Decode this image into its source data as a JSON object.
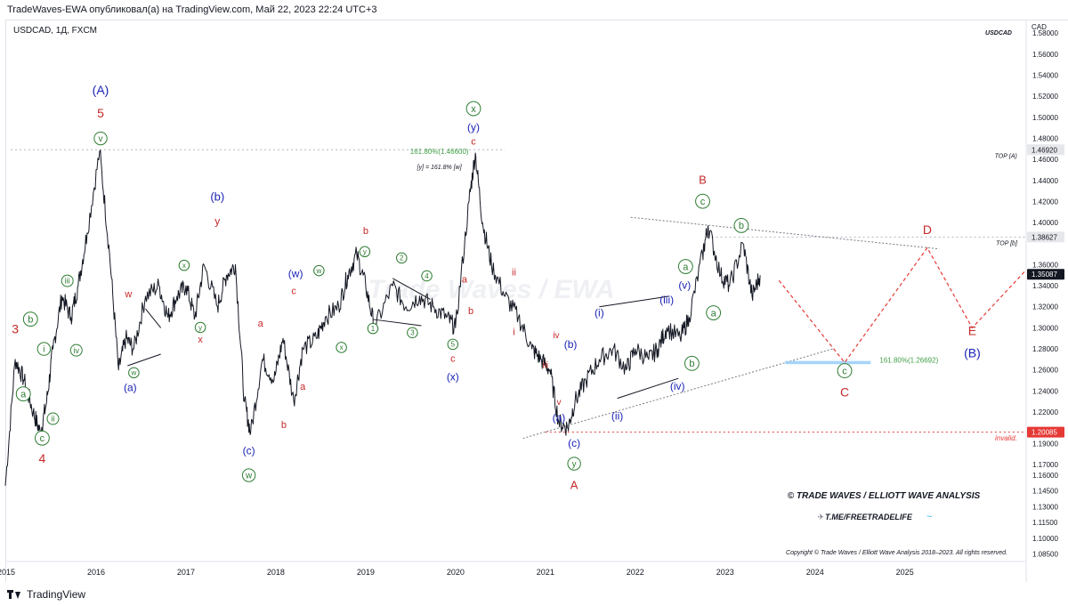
{
  "header": {
    "publisher_line": "TradeWaves-EWA опубликовал(а) на TradingView.com, Май 22, 2023 22:24 UTC+3"
  },
  "chart_data": {
    "type": "line",
    "title": "USDCAD, 1Д, FXCM",
    "symbol_label": "USDCAD",
    "currency": "CAD",
    "xlim": [
      2015.0,
      2026.35
    ],
    "ylim": [
      1.078,
      1.592
    ],
    "x_ticks": [
      {
        "x": 2015.0,
        "label": "2015"
      },
      {
        "x": 2016.0,
        "label": "2016"
      },
      {
        "x": 2017.0,
        "label": "2017"
      },
      {
        "x": 2018.0,
        "label": "2018"
      },
      {
        "x": 2019.0,
        "label": "2019"
      },
      {
        "x": 2020.0,
        "label": "2020"
      },
      {
        "x": 2021.0,
        "label": "2021"
      },
      {
        "x": 2022.0,
        "label": "2022"
      },
      {
        "x": 2023.0,
        "label": "2023"
      },
      {
        "x": 2024.0,
        "label": "2024"
      },
      {
        "x": 2025.0,
        "label": "2025"
      }
    ],
    "y_ticks": [
      {
        "y": 1.58,
        "label": "1.58000"
      },
      {
        "y": 1.56,
        "label": "1.56000"
      },
      {
        "y": 1.54,
        "label": "1.54000"
      },
      {
        "y": 1.52,
        "label": "1.52000"
      },
      {
        "y": 1.5,
        "label": "1.50000"
      },
      {
        "y": 1.48,
        "label": "1.48000"
      },
      {
        "y": 1.46,
        "label": "1.46000"
      },
      {
        "y": 1.44,
        "label": "1.44000"
      },
      {
        "y": 1.42,
        "label": "1.42000"
      },
      {
        "y": 1.4,
        "label": "1.40000"
      },
      {
        "y": 1.36,
        "label": "1.36000"
      },
      {
        "y": 1.34,
        "label": "1.34000"
      },
      {
        "y": 1.32,
        "label": "1.32000"
      },
      {
        "y": 1.3,
        "label": "1.30000"
      },
      {
        "y": 1.28,
        "label": "1.28000"
      },
      {
        "y": 1.26,
        "label": "1.26000"
      },
      {
        "y": 1.24,
        "label": "1.24000"
      },
      {
        "y": 1.22,
        "label": "1.22000"
      },
      {
        "y": 1.19,
        "label": "1.19000"
      },
      {
        "y": 1.17,
        "label": "1.17000"
      },
      {
        "y": 1.16,
        "label": "1.16000"
      },
      {
        "y": 1.145,
        "label": "1.14500"
      },
      {
        "y": 1.13,
        "label": "1.13000"
      },
      {
        "y": 1.115,
        "label": "1.11500"
      },
      {
        "y": 1.1,
        "label": "1.10000"
      },
      {
        "y": 1.085,
        "label": "1.08500"
      }
    ],
    "price_badges": [
      {
        "y": 1.4692,
        "label": "1.46920",
        "color": "#e6e7ea",
        "text_color": "#131722"
      },
      {
        "y": 1.38627,
        "label": "1.38627",
        "color": "#e6e7ea",
        "text_color": "#131722"
      },
      {
        "y": 1.35087,
        "label": "1.35087",
        "color": "#131722",
        "text_color": "#ffffff"
      },
      {
        "y": 1.20085,
        "label": "1.20085",
        "color": "#e53935",
        "text_color": "#ffffff"
      }
    ],
    "series": [
      {
        "color": "#131722",
        "x": [
          2014.99,
          2015.1,
          2015.2,
          2015.3,
          2015.38,
          2015.45,
          2015.52,
          2015.62,
          2015.72,
          2015.8,
          2015.9,
          2016.04,
          2016.15,
          2016.25,
          2016.33,
          2016.42,
          2016.55,
          2016.7,
          2016.8,
          2016.9,
          2017.0,
          2017.1,
          2017.2,
          2017.35,
          2017.45,
          2017.55,
          2017.65,
          2017.72,
          2017.85,
          2017.98,
          2018.08,
          2018.2,
          2018.3,
          2018.45,
          2018.55,
          2018.7,
          2018.8,
          2018.9,
          2019.0,
          2019.1,
          2019.3,
          2019.45,
          2019.6,
          2019.75,
          2019.9,
          2020.0,
          2020.15,
          2020.22,
          2020.3,
          2020.4,
          2020.55,
          2020.7,
          2020.85,
          2020.95,
          2021.05,
          2021.15,
          2021.25,
          2021.33,
          2021.45,
          2021.6,
          2021.75,
          2021.9,
          2022.0,
          2022.15,
          2022.25,
          2022.35,
          2022.5,
          2022.6,
          2022.75,
          2022.81,
          2022.95,
          2023.05,
          2023.2,
          2023.3,
          2023.39
        ],
        "y": [
          1.15,
          1.27,
          1.25,
          1.22,
          1.2,
          1.23,
          1.28,
          1.33,
          1.31,
          1.34,
          1.39,
          1.468,
          1.37,
          1.26,
          1.29,
          1.28,
          1.33,
          1.34,
          1.31,
          1.33,
          1.34,
          1.31,
          1.36,
          1.32,
          1.35,
          1.36,
          1.23,
          1.2,
          1.27,
          1.25,
          1.29,
          1.23,
          1.28,
          1.29,
          1.31,
          1.32,
          1.35,
          1.37,
          1.34,
          1.3,
          1.34,
          1.32,
          1.33,
          1.32,
          1.31,
          1.3,
          1.42,
          1.466,
          1.4,
          1.36,
          1.33,
          1.31,
          1.28,
          1.27,
          1.26,
          1.21,
          1.205,
          1.23,
          1.25,
          1.27,
          1.28,
          1.26,
          1.28,
          1.27,
          1.28,
          1.3,
          1.29,
          1.31,
          1.37,
          1.397,
          1.35,
          1.34,
          1.38,
          1.33,
          1.35
        ]
      }
    ],
    "projection": {
      "color": "#e53935",
      "x": [
        2023.6,
        2024.33,
        2025.25,
        2025.75,
        2026.35
      ],
      "y": [
        1.345,
        1.267,
        1.376,
        1.3,
        1.355
      ]
    },
    "lines": [
      {
        "x": [
          2015.05,
          2020.55
        ],
        "y": [
          1.4692,
          1.4692
        ],
        "color": "#b2b5be",
        "dash": "2,3"
      },
      {
        "x": [
          2022.8,
          2026.35
        ],
        "y": [
          1.38627,
          1.38627
        ],
        "color": "#b2b5be",
        "dash": "2,3"
      },
      {
        "x": [
          2021.0,
          2026.35
        ],
        "y": [
          1.20085,
          1.20085
        ],
        "color": "#e53935",
        "dash": "2,3"
      },
      {
        "x": [
          2020.75,
          2024.2
        ],
        "y": [
          1.195,
          1.28
        ],
        "color": "#787b86",
        "dash": "2,2"
      },
      {
        "x": [
          2021.95,
          2025.38
        ],
        "y": [
          1.405,
          1.375
        ],
        "color": "#787b86",
        "dash": "2,2"
      },
      {
        "x": [
          2021.6,
          2022.38
        ],
        "y": [
          1.32,
          1.33
        ],
        "color": "#131722",
        "dash": ""
      },
      {
        "x": [
          2021.8,
          2022.48
        ],
        "y": [
          1.233,
          1.252
        ],
        "color": "#131722",
        "dash": ""
      },
      {
        "x": [
          2016.35,
          2016.72
        ],
        "y": [
          1.264,
          1.275
        ],
        "color": "#131722",
        "dash": ""
      },
      {
        "x": [
          2016.55,
          2016.72
        ],
        "y": [
          1.318,
          1.3
        ],
        "color": "#131722",
        "dash": ""
      },
      {
        "x": [
          2019.08,
          2019.62
        ],
        "y": [
          1.308,
          1.302
        ],
        "color": "#131722",
        "dash": ""
      },
      {
        "x": [
          2019.3,
          2019.72
        ],
        "y": [
          1.347,
          1.327
        ],
        "color": "#131722",
        "dash": ""
      }
    ],
    "fib_zone": {
      "x": [
        2023.67,
        2024.62
      ],
      "y": [
        1.2655,
        1.2685
      ],
      "color": "#90caf9"
    },
    "annotations": [
      {
        "x": 2016.05,
        "y": 1.522,
        "text": "(A)",
        "color": "#1a23b5",
        "size": 14
      },
      {
        "x": 2016.05,
        "y": 1.5,
        "text": "5",
        "color": "#c62828",
        "size": 14
      },
      {
        "x": 2016.05,
        "y": 1.477,
        "text": "v",
        "color": "#2e7d32",
        "size": 10,
        "circle": true
      },
      {
        "x": 2015.1,
        "y": 1.295,
        "text": "3",
        "color": "#c62828",
        "size": 14
      },
      {
        "x": 2015.27,
        "y": 1.305,
        "text": "b",
        "color": "#2e7d32",
        "size": 11,
        "circle": true
      },
      {
        "x": 2015.42,
        "y": 1.277,
        "text": "i",
        "color": "#2e7d32",
        "size": 10,
        "circle": true
      },
      {
        "x": 2015.19,
        "y": 1.234,
        "text": "a",
        "color": "#2e7d32",
        "size": 11,
        "circle": true
      },
      {
        "x": 2015.52,
        "y": 1.211,
        "text": "ii",
        "color": "#2e7d32",
        "size": 9,
        "circle": true
      },
      {
        "x": 2015.4,
        "y": 1.192,
        "text": "c",
        "color": "#2e7d32",
        "size": 11,
        "circle": true
      },
      {
        "x": 2015.4,
        "y": 1.172,
        "text": "4",
        "color": "#c62828",
        "size": 14
      },
      {
        "x": 2015.68,
        "y": 1.342,
        "text": "iii",
        "color": "#2e7d32",
        "size": 9,
        "circle": true
      },
      {
        "x": 2015.78,
        "y": 1.276,
        "text": "iv",
        "color": "#2e7d32",
        "size": 9,
        "circle": true
      },
      {
        "x": 2016.38,
        "y": 1.24,
        "text": "(a)",
        "color": "#1a23b5",
        "size": 12
      },
      {
        "x": 2016.36,
        "y": 1.329,
        "text": "w",
        "color": "#c62828",
        "size": 11
      },
      {
        "x": 2016.42,
        "y": 1.255,
        "text": "w",
        "color": "#2e7d32",
        "size": 8,
        "circle": true
      },
      {
        "x": 2016.98,
        "y": 1.357,
        "text": "x",
        "color": "#2e7d32",
        "size": 8,
        "circle": true
      },
      {
        "x": 2017.16,
        "y": 1.286,
        "text": "x",
        "color": "#c62828",
        "size": 11
      },
      {
        "x": 2017.16,
        "y": 1.298,
        "text": "y",
        "color": "#2e7d32",
        "size": 8,
        "circle": true
      },
      {
        "x": 2017.35,
        "y": 1.421,
        "text": "(b)",
        "color": "#1a23b5",
        "size": 13
      },
      {
        "x": 2017.35,
        "y": 1.398,
        "text": "y",
        "color": "#c62828",
        "size": 12
      },
      {
        "x": 2017.7,
        "y": 1.18,
        "text": "(c)",
        "color": "#1a23b5",
        "size": 12
      },
      {
        "x": 2017.7,
        "y": 1.157,
        "text": "w",
        "color": "#2e7d32",
        "size": 10,
        "circle": true
      },
      {
        "x": 2017.83,
        "y": 1.301,
        "text": "a",
        "color": "#c62828",
        "size": 11
      },
      {
        "x": 2018.09,
        "y": 1.205,
        "text": "b",
        "color": "#c62828",
        "size": 11
      },
      {
        "x": 2018.2,
        "y": 1.332,
        "text": "c",
        "color": "#c62828",
        "size": 11
      },
      {
        "x": 2018.3,
        "y": 1.241,
        "text": "a",
        "color": "#c62828",
        "size": 11
      },
      {
        "x": 2018.22,
        "y": 1.348,
        "text": "(w)",
        "color": "#1a23b5",
        "size": 12
      },
      {
        "x": 2018.48,
        "y": 1.352,
        "text": "w",
        "color": "#2e7d32",
        "size": 8,
        "circle": true
      },
      {
        "x": 2018.73,
        "y": 1.279,
        "text": "x",
        "color": "#2e7d32",
        "size": 8,
        "circle": true
      },
      {
        "x": 2019.0,
        "y": 1.389,
        "text": "b",
        "color": "#c62828",
        "size": 11
      },
      {
        "x": 2018.99,
        "y": 1.37,
        "text": "y",
        "color": "#2e7d32",
        "size": 8,
        "circle": true
      },
      {
        "x": 2019.08,
        "y": 1.297,
        "text": "1",
        "color": "#2e7d32",
        "size": 8,
        "circle": true
      },
      {
        "x": 2019.4,
        "y": 1.364,
        "text": "2",
        "color": "#2e7d32",
        "size": 8,
        "circle": true
      },
      {
        "x": 2019.52,
        "y": 1.293,
        "text": "3",
        "color": "#2e7d32",
        "size": 8,
        "circle": true
      },
      {
        "x": 2019.68,
        "y": 1.347,
        "text": "4",
        "color": "#2e7d32",
        "size": 8,
        "circle": true
      },
      {
        "x": 2019.97,
        "y": 1.282,
        "text": "5",
        "color": "#2e7d32",
        "size": 8,
        "circle": true
      },
      {
        "x": 2019.97,
        "y": 1.268,
        "text": "c",
        "color": "#c62828",
        "size": 11
      },
      {
        "x": 2019.97,
        "y": 1.25,
        "text": "(x)",
        "color": "#1a23b5",
        "size": 12
      },
      {
        "x": 2020.1,
        "y": 1.343,
        "text": "a",
        "color": "#c62828",
        "size": 11
      },
      {
        "x": 2020.17,
        "y": 1.313,
        "text": "b",
        "color": "#c62828",
        "size": 11
      },
      {
        "x": 2020.2,
        "y": 1.505,
        "text": "x",
        "color": "#2e7d32",
        "size": 11,
        "circle": true
      },
      {
        "x": 2020.2,
        "y": 1.487,
        "text": "(y)",
        "color": "#1a23b5",
        "size": 12
      },
      {
        "x": 2020.2,
        "y": 1.474,
        "text": "c",
        "color": "#c62828",
        "size": 11
      },
      {
        "x": 2020.65,
        "y": 1.35,
        "text": "ii",
        "color": "#c62828",
        "size": 11
      },
      {
        "x": 2020.65,
        "y": 1.293,
        "text": "i",
        "color": "#c62828",
        "size": 11
      },
      {
        "x": 2021.12,
        "y": 1.29,
        "text": "iv",
        "color": "#c62828",
        "size": 10
      },
      {
        "x": 2021.0,
        "y": 1.262,
        "text": "iii",
        "color": "#c62828",
        "size": 10
      },
      {
        "x": 2021.15,
        "y": 1.227,
        "text": "v",
        "color": "#c62828",
        "size": 10
      },
      {
        "x": 2021.28,
        "y": 1.281,
        "text": "(b)",
        "color": "#1a23b5",
        "size": 12
      },
      {
        "x": 2021.15,
        "y": 1.211,
        "text": "(a)",
        "color": "#1a23b5",
        "size": 12
      },
      {
        "x": 2021.32,
        "y": 1.187,
        "text": "(c)",
        "color": "#1a23b5",
        "size": 12
      },
      {
        "x": 2021.32,
        "y": 1.168,
        "text": "y",
        "color": "#2e7d32",
        "size": 10,
        "circle": true
      },
      {
        "x": 2021.32,
        "y": 1.147,
        "text": "A",
        "color": "#c62828",
        "size": 13
      },
      {
        "x": 2021.6,
        "y": 1.311,
        "text": "(i)",
        "color": "#1a23b5",
        "size": 12
      },
      {
        "x": 2021.8,
        "y": 1.213,
        "text": "(ii)",
        "color": "#1a23b5",
        "size": 12
      },
      {
        "x": 2022.35,
        "y": 1.323,
        "text": "(iii)",
        "color": "#1a23b5",
        "size": 12
      },
      {
        "x": 2022.47,
        "y": 1.241,
        "text": "(iv)",
        "color": "#1a23b5",
        "size": 12
      },
      {
        "x": 2022.55,
        "y": 1.337,
        "text": "(v)",
        "color": "#1a23b5",
        "size": 12
      },
      {
        "x": 2022.56,
        "y": 1.355,
        "text": "a",
        "color": "#2e7d32",
        "size": 11,
        "circle": true
      },
      {
        "x": 2022.63,
        "y": 1.263,
        "text": "b",
        "color": "#2e7d32",
        "size": 11,
        "circle": true
      },
      {
        "x": 2022.87,
        "y": 1.311,
        "text": "a",
        "color": "#2e7d32",
        "size": 11,
        "circle": true
      },
      {
        "x": 2022.75,
        "y": 1.437,
        "text": "B",
        "color": "#c62828",
        "size": 13
      },
      {
        "x": 2022.75,
        "y": 1.417,
        "text": "c",
        "color": "#2e7d32",
        "size": 11,
        "circle": true
      },
      {
        "x": 2023.18,
        "y": 1.394,
        "text": "b",
        "color": "#2e7d32",
        "size": 11,
        "circle": true
      },
      {
        "x": 2024.33,
        "y": 1.256,
        "text": "c",
        "color": "#2e7d32",
        "size": 11,
        "circle": true
      },
      {
        "x": 2024.33,
        "y": 1.235,
        "text": "C",
        "color": "#c62828",
        "size": 14
      },
      {
        "x": 2025.25,
        "y": 1.389,
        "text": "D",
        "color": "#c62828",
        "size": 14
      },
      {
        "x": 2025.75,
        "y": 1.293,
        "text": "E",
        "color": "#c62828",
        "size": 14
      },
      {
        "x": 2025.75,
        "y": 1.272,
        "text": "(B)",
        "color": "#1a23b5",
        "size": 14
      },
      {
        "x": 2019.82,
        "y": 1.465,
        "text": "161.80%(1.46600)",
        "color": "#43a047",
        "size": 8
      },
      {
        "x": 2019.82,
        "y": 1.451,
        "text": "[y] = 161.8% [w]",
        "color": "#131722",
        "size": 7,
        "italic": true
      },
      {
        "x": 2024.72,
        "y": 1.267,
        "text": "161.80%(1.26692)",
        "color": "#43a047",
        "size": 8,
        "anchor": "start"
      },
      {
        "x": 2026.25,
        "y": 1.4615,
        "text": "TOP (A)",
        "color": "#131722",
        "size": 7,
        "italic": true,
        "anchor": "end"
      },
      {
        "x": 2026.25,
        "y": 1.3785,
        "text": "TOP [b]",
        "color": "#131722",
        "size": 7,
        "italic": true,
        "anchor": "end"
      },
      {
        "x": 2026.25,
        "y": 1.193,
        "text": "invalid.",
        "color": "#e53935",
        "size": 8,
        "italic": true,
        "anchor": "end"
      }
    ],
    "watermark": "Trade Waves / EWA",
    "copyright_title": "© TRADE WAVES / ELLIOTT WAVE ANALYSIS",
    "telegram": "T.ME/FREETRADELIFE",
    "copyright_note": "Copyright © Trade Waves / Elliott Wave Analysis 2018–2023. All rights reserved."
  },
  "footer": {
    "brand": "TradingView"
  }
}
